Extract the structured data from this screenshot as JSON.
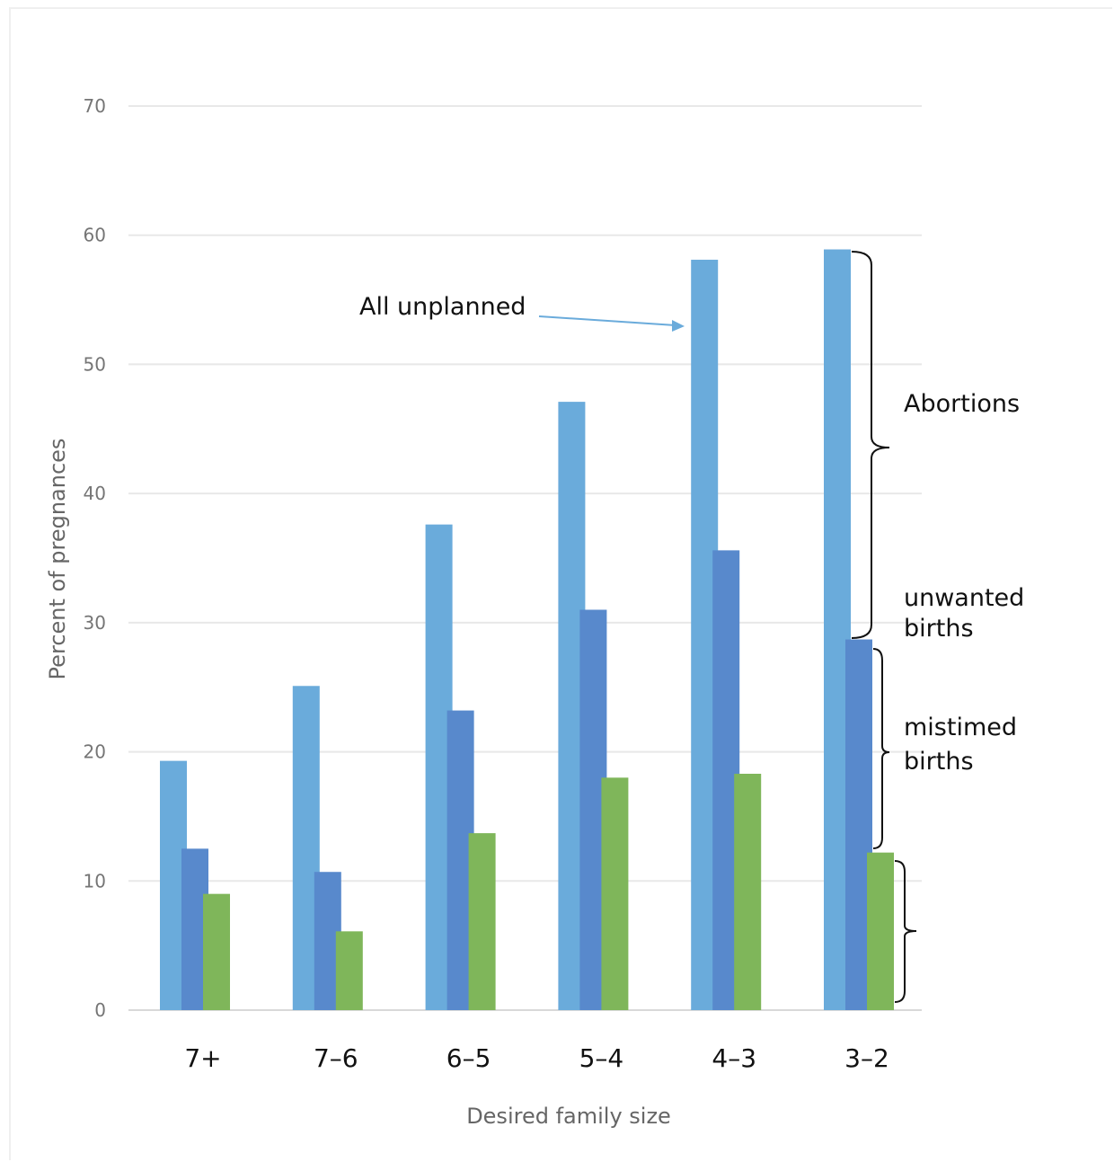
{
  "chart_data": {
    "type": "bar",
    "categories": [
      "7+",
      "7–6",
      "6–5",
      "5–4",
      "4–3",
      "3–2"
    ],
    "series": [
      {
        "values": [
          19.3,
          25.1,
          37.6,
          47.1,
          58.1,
          58.9
        ]
      },
      {
        "values": [
          12.5,
          10.7,
          23.2,
          31.0,
          35.6,
          28.7
        ]
      },
      {
        "values": [
          9.0,
          6.1,
          13.7,
          18.0,
          18.3,
          12.2
        ]
      }
    ],
    "colors": [
      "#6aabdb",
      "#5889cc",
      "#7fb65a"
    ],
    "xlabel": "Desired family size",
    "ylabel": "Percent of pregnances",
    "ylim": [
      0,
      70
    ],
    "yticks": [
      0,
      10,
      20,
      30,
      40,
      50,
      60,
      70
    ],
    "grid": true,
    "annotations": {
      "arrow": "All unplanned",
      "abortions": "Abortions",
      "unwanted_1": "unwanted",
      "unwanted_2": "births",
      "mistimed_1": "mistimed",
      "mistimed_2": "births"
    }
  }
}
